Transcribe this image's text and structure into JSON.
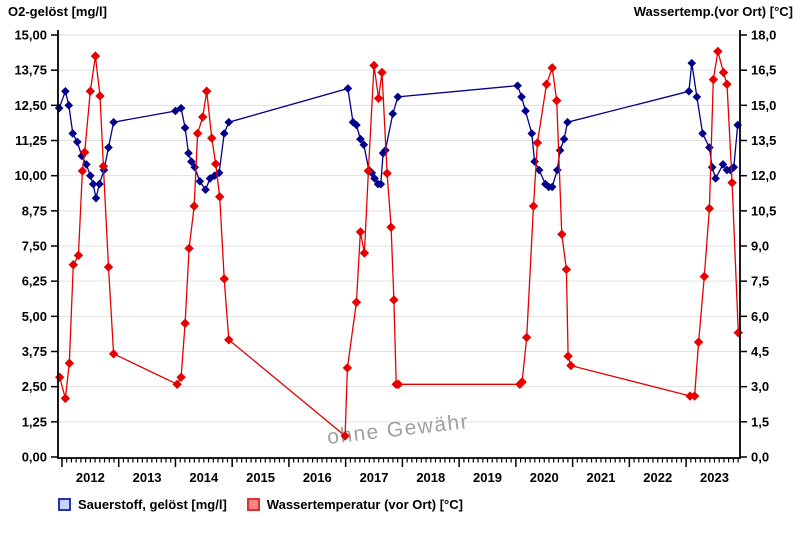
{
  "page": {
    "left_title": "O2-gelöst [mg/l]",
    "right_title": "Wassertemp.(vor Ort) [°C]",
    "watermark": "ohne Gewähr"
  },
  "legend": {
    "items": [
      {
        "label": "Sauerstoff, gelöst [mg/l]",
        "fill": "#c9d2f2",
        "border": "#2434ad"
      },
      {
        "label": "Wassertemperatur (vor Ort) [°C]",
        "fill": "#f48484",
        "border": "#e03030"
      }
    ]
  },
  "chart_data": {
    "type": "line",
    "title": "",
    "grid": "horizontal",
    "legend_position": "bottom",
    "watermark": "ohne Gewähr",
    "colors": {
      "o2_series": "#00008c",
      "temp_series": "#e60000",
      "gridline": "#e0e0e0",
      "axis": "#000000",
      "watermark": "#a0a0a0"
    },
    "x_axis": {
      "tick_years": [
        "2012",
        "2013",
        "2014",
        "2015",
        "2016",
        "2017",
        "2018",
        "2019",
        "2020",
        "2021",
        "2022",
        "2023"
      ],
      "range": [
        2011.93,
        2023.95
      ],
      "minor_ticks": "monthly"
    },
    "left_axis": {
      "label": "O2-gelöst [mg/l]",
      "range": [
        0,
        15
      ],
      "tick_values": [
        15,
        13.75,
        12.5,
        11.25,
        10,
        8.75,
        7.5,
        6.25,
        5,
        3.75,
        2.5,
        1.25,
        0
      ],
      "tick_labels": [
        "15,00",
        "13,75",
        "12,50",
        "11,25",
        "10,00",
        "8,75",
        "7,50",
        "6,25",
        "5,00",
        "3,75",
        "2,50",
        "1,25",
        "0,00"
      ]
    },
    "right_axis": {
      "label": "Wassertemp.(vor Ort) [°C]",
      "range": [
        0,
        18
      ],
      "tick_values": [
        18,
        16.5,
        15,
        13.5,
        12,
        10.5,
        9,
        7.5,
        6,
        4.5,
        3,
        1.5,
        0
      ],
      "tick_labels": [
        "18,0",
        "16,5",
        "15,0",
        "13,5",
        "12,0",
        "10,5",
        "9,0",
        "7,5",
        "6,0",
        "4,5",
        "3,0",
        "1,5",
        "0,0"
      ]
    },
    "series": [
      {
        "name": "Sauerstoff, gelöst [mg/l]",
        "axis": "left",
        "color": "#00008c",
        "marker": "diamond",
        "points": [
          [
            2011.95,
            12.4
          ],
          [
            2012.06,
            13.0
          ],
          [
            2012.12,
            12.5
          ],
          [
            2012.19,
            11.5
          ],
          [
            2012.27,
            11.2
          ],
          [
            2012.35,
            10.7
          ],
          [
            2012.43,
            10.4
          ],
          [
            2012.5,
            10.0
          ],
          [
            2012.55,
            9.7
          ],
          [
            2012.6,
            9.2
          ],
          [
            2012.66,
            9.7
          ],
          [
            2012.74,
            10.2
          ],
          [
            2012.82,
            11.0
          ],
          [
            2012.91,
            11.9
          ],
          [
            2014.0,
            12.3
          ],
          [
            2014.1,
            12.4
          ],
          [
            2014.17,
            11.7
          ],
          [
            2014.23,
            10.8
          ],
          [
            2014.28,
            10.5
          ],
          [
            2014.34,
            10.3
          ],
          [
            2014.43,
            9.8
          ],
          [
            2014.53,
            9.5
          ],
          [
            2014.61,
            9.9
          ],
          [
            2014.69,
            10.0
          ],
          [
            2014.77,
            10.1
          ],
          [
            2014.86,
            11.5
          ],
          [
            2014.94,
            11.9
          ],
          [
            2017.04,
            13.1
          ],
          [
            2017.13,
            11.9
          ],
          [
            2017.19,
            11.8
          ],
          [
            2017.26,
            11.3
          ],
          [
            2017.32,
            11.1
          ],
          [
            2017.41,
            10.2
          ],
          [
            2017.46,
            10.1
          ],
          [
            2017.51,
            9.9
          ],
          [
            2017.57,
            9.7
          ],
          [
            2017.62,
            9.7
          ],
          [
            2017.66,
            10.8
          ],
          [
            2017.7,
            10.9
          ],
          [
            2017.83,
            12.2
          ],
          [
            2017.92,
            12.8
          ],
          [
            2020.03,
            13.2
          ],
          [
            2020.1,
            12.8
          ],
          [
            2020.17,
            12.3
          ],
          [
            2020.28,
            11.5
          ],
          [
            2020.33,
            10.5
          ],
          [
            2020.41,
            10.2
          ],
          [
            2020.52,
            9.7
          ],
          [
            2020.58,
            9.6
          ],
          [
            2020.64,
            9.6
          ],
          [
            2020.73,
            10.2
          ],
          [
            2020.78,
            10.9
          ],
          [
            2020.85,
            11.3
          ],
          [
            2020.91,
            11.9
          ],
          [
            2023.05,
            13.0
          ],
          [
            2023.1,
            14.0
          ],
          [
            2023.19,
            12.8
          ],
          [
            2023.29,
            11.5
          ],
          [
            2023.41,
            11.0
          ],
          [
            2023.46,
            10.3
          ],
          [
            2023.52,
            9.9
          ],
          [
            2023.65,
            10.4
          ],
          [
            2023.72,
            10.2
          ],
          [
            2023.78,
            10.2
          ],
          [
            2023.84,
            10.3
          ],
          [
            2023.91,
            11.8
          ]
        ]
      },
      {
        "name": "Wassertemperatur (vor Ort) [°C]",
        "axis": "right",
        "color": "#e60000",
        "marker": "diamond",
        "points": [
          [
            2011.96,
            3.4
          ],
          [
            2012.06,
            2.5
          ],
          [
            2012.13,
            4.0
          ],
          [
            2012.2,
            8.2
          ],
          [
            2012.29,
            8.6
          ],
          [
            2012.36,
            12.2
          ],
          [
            2012.4,
            13.0
          ],
          [
            2012.5,
            15.6
          ],
          [
            2012.59,
            17.1
          ],
          [
            2012.67,
            15.4
          ],
          [
            2012.73,
            12.4
          ],
          [
            2012.82,
            8.1
          ],
          [
            2012.91,
            4.4
          ],
          [
            2014.03,
            3.1
          ],
          [
            2014.1,
            3.4
          ],
          [
            2014.17,
            5.7
          ],
          [
            2014.24,
            8.9
          ],
          [
            2014.33,
            10.7
          ],
          [
            2014.39,
            13.8
          ],
          [
            2014.48,
            14.5
          ],
          [
            2014.55,
            15.6
          ],
          [
            2014.64,
            13.6
          ],
          [
            2014.71,
            12.5
          ],
          [
            2014.78,
            11.1
          ],
          [
            2014.86,
            7.6
          ],
          [
            2014.94,
            5.0
          ],
          [
            2016.99,
            0.9
          ],
          [
            2017.03,
            3.8
          ],
          [
            2017.19,
            6.6
          ],
          [
            2017.26,
            9.6
          ],
          [
            2017.33,
            8.7
          ],
          [
            2017.4,
            12.2
          ],
          [
            2017.5,
            16.7
          ],
          [
            2017.58,
            15.3
          ],
          [
            2017.64,
            16.4
          ],
          [
            2017.73,
            12.1
          ],
          [
            2017.8,
            9.8
          ],
          [
            2017.85,
            6.7
          ],
          [
            2017.89,
            3.1
          ],
          [
            2017.93,
            3.1
          ],
          [
            2020.07,
            3.1
          ],
          [
            2020.11,
            3.2
          ],
          [
            2020.19,
            5.1
          ],
          [
            2020.31,
            10.7
          ],
          [
            2020.38,
            13.4
          ],
          [
            2020.54,
            15.9
          ],
          [
            2020.64,
            16.6
          ],
          [
            2020.72,
            15.2
          ],
          [
            2020.81,
            9.5
          ],
          [
            2020.89,
            8.0
          ],
          [
            2020.92,
            4.3
          ],
          [
            2020.97,
            3.9
          ],
          [
            2023.07,
            2.6
          ],
          [
            2023.15,
            2.6
          ],
          [
            2023.22,
            4.9
          ],
          [
            2023.32,
            7.7
          ],
          [
            2023.41,
            10.6
          ],
          [
            2023.48,
            16.1
          ],
          [
            2023.56,
            17.3
          ],
          [
            2023.66,
            16.4
          ],
          [
            2023.72,
            15.9
          ],
          [
            2023.81,
            11.7
          ],
          [
            2023.92,
            5.3
          ]
        ]
      }
    ]
  }
}
